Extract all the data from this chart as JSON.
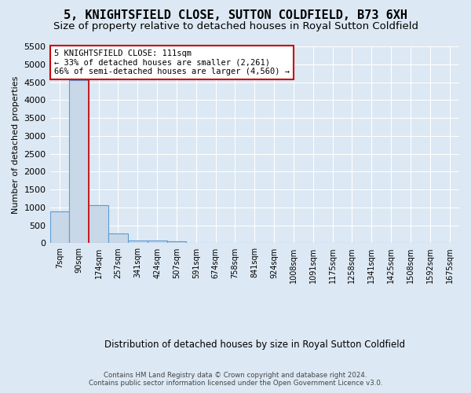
{
  "title": "5, KNIGHTSFIELD CLOSE, SUTTON COLDFIELD, B73 6XH",
  "subtitle": "Size of property relative to detached houses in Royal Sutton Coldfield",
  "xlabel": "Distribution of detached houses by size in Royal Sutton Coldfield",
  "ylabel": "Number of detached properties",
  "bin_labels": [
    "7sqm",
    "90sqm",
    "174sqm",
    "257sqm",
    "341sqm",
    "424sqm",
    "507sqm",
    "591sqm",
    "674sqm",
    "758sqm",
    "841sqm",
    "924sqm",
    "1008sqm",
    "1091sqm",
    "1175sqm",
    "1258sqm",
    "1341sqm",
    "1425sqm",
    "1508sqm",
    "1592sqm",
    "1675sqm"
  ],
  "bar_values": [
    880,
    4560,
    1060,
    280,
    80,
    75,
    50,
    0,
    0,
    0,
    0,
    0,
    0,
    0,
    0,
    0,
    0,
    0,
    0,
    0,
    0
  ],
  "bar_color": "#c8d8e8",
  "bar_edge_color": "#5b9bd5",
  "property_line_color": "#cc0000",
  "property_line_x": 1.5,
  "annotation_text": "5 KNIGHTSFIELD CLOSE: 111sqm\n← 33% of detached houses are smaller (2,261)\n66% of semi-detached houses are larger (4,560) →",
  "annotation_box_facecolor": "#ffffff",
  "annotation_box_edgecolor": "#cc0000",
  "ylim": [
    0,
    5500
  ],
  "yticks": [
    0,
    500,
    1000,
    1500,
    2000,
    2500,
    3000,
    3500,
    4000,
    4500,
    5000,
    5500
  ],
  "background_color": "#dce8f3",
  "grid_color": "#ffffff",
  "title_fontsize": 11,
  "subtitle_fontsize": 9.5,
  "footer_line1": "Contains HM Land Registry data © Crown copyright and database right 2024.",
  "footer_line2": "Contains public sector information licensed under the Open Government Licence v3.0."
}
